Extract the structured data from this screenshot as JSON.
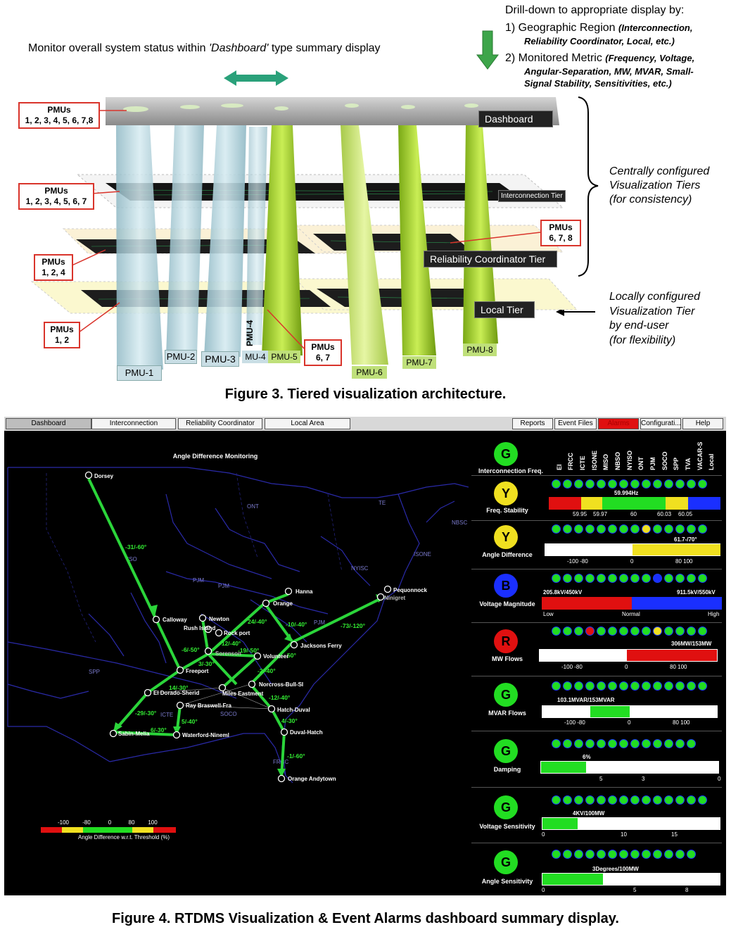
{
  "fig3": {
    "drill_title": "Drill-down to appropriate display by:",
    "drill_1_main": "1) Geographic Region",
    "drill_1_sub_a": "(Interconnection,",
    "drill_1_sub_b": "Reliability Coordinator, Local, etc.)",
    "drill_2_main": "2) Monitored Metric",
    "drill_2_sub_a": "(Frequency, Voltage,",
    "drill_2_sub_b": "Angular-Separation, MW, MVAR, Small-",
    "drill_2_sub_c": "Signal Stability, Sensitivities, etc.)",
    "monitor_text_a": "Monitor overall system status within ",
    "monitor_text_b": "'Dashboard'",
    "monitor_text_c": " type summary display",
    "pmu_boxes": [
      {
        "title": "PMUs",
        "list": "1, 2, 3, 4, 5, 6, 7,8"
      },
      {
        "title": "PMUs",
        "list": "1, 2, 3, 4, 5, 6, 7"
      },
      {
        "title": "PMUs",
        "list": "1, 2, 4"
      },
      {
        "title": "PMUs",
        "list": "1, 2"
      },
      {
        "title": "PMUs",
        "list": "6, 7, 8"
      },
      {
        "title": "PMUs",
        "list": "6, 7"
      }
    ],
    "tiers": {
      "dashboard": "Dashboard",
      "interconnection": "Interconnection Tier",
      "reliability": "Reliability Coordinator Tier",
      "local": "Local Tier"
    },
    "pmu_labels": [
      "PMU-1",
      "PMU-2",
      "PMU-3",
      "PMU-4",
      "MU-4",
      "PMU-5",
      "PMU-6",
      "PMU-7",
      "PMU-8"
    ],
    "central_a": "Centrally configured",
    "central_b": "Visualization Tiers",
    "central_c": "(for consistency)",
    "local_a": "Locally configured",
    "local_b": "Visualization Tier",
    "local_c": "by end-user",
    "local_d": "(for flexibility)",
    "caption": "Figure 3. Tiered visualization architecture."
  },
  "fig4": {
    "tabs": [
      "Dashboard",
      "Interconnection",
      "Reliability Coordinator",
      "Local Area",
      "Reports",
      "Event Files",
      "Alarms",
      "Configurati...",
      "Help"
    ],
    "map_title": "Angle Difference Monitoring",
    "legend_ticks": [
      "-100",
      "-80",
      "0",
      "80",
      "100"
    ],
    "legend_label": "Angle Difference w.r.t. Threshold (%)",
    "columns": [
      "EI",
      "FRCC",
      "ICTE",
      "ISONE",
      "MISO",
      "NBSO",
      "NYISO",
      "ONT",
      "PJM",
      "SOCO",
      "SPP",
      "TVA",
      "VACAR-S",
      "Local"
    ],
    "regions": [
      "ONT",
      "TE",
      "NBSC",
      "ISONE",
      "NYISC",
      "PJM",
      "PJM",
      "SPP",
      "SOCO",
      "ICTE",
      "FRCC",
      "ISO",
      "PJM"
    ],
    "nodes": [
      "Dorsey",
      "Hanna",
      "Orange",
      "Pequonnock",
      "Ninigret",
      "Calloway",
      "Newton",
      "Rush Island",
      "Rock port",
      "Jacksons Ferry",
      "Sorenson",
      "Volunteer",
      "Freeport",
      "Norcross-Bull-SI",
      "Miles Eastment",
      "El Dorado-Sherid",
      "Ray Braswell-Fra",
      "Hatch-Duval",
      "Waterford-Nineml",
      "Sabin-Melia",
      "Duval-Hatch",
      "Orange Andytown"
    ],
    "flows": [
      "-31/-60°",
      "24/-40°",
      "-10/-40°",
      "-73/-120°",
      "-12/-40°",
      "-6/-50°",
      "3/-30°",
      "-19/-50°",
      "50°",
      "-2/-40°",
      "14/-30°",
      "-29/-30°",
      "5/-40°",
      "-12/-40°",
      "4/-30°",
      "-1/-60°",
      "6/-30°"
    ],
    "metrics": [
      {
        "status": "G",
        "label": "Interconnection Freq."
      },
      {
        "status": "Y",
        "label": "Freq. Stability",
        "value": "59.994Hz",
        "ticks": [
          "59.95",
          "59.97",
          "60",
          "60.03",
          "60.05"
        ]
      },
      {
        "status": "Y",
        "label": "Angle Difference",
        "value": "61.7-/70°",
        "ticks": [
          "-100 -80",
          "0",
          "80 100"
        ]
      },
      {
        "status": "B",
        "label": "Voltage Magnitude",
        "value_left": "205.8kV/450kV",
        "value_right": "911.5kV/550kV",
        "ticks": [
          "Low",
          "Normal",
          "High"
        ]
      },
      {
        "status": "R",
        "label": "MW Flows",
        "value": "306MW/153MW",
        "ticks": [
          "-100 -80",
          "0",
          "80 100"
        ]
      },
      {
        "status": "G",
        "label": "MVAR Flows",
        "value": "103.1MVAR/153MVAR",
        "ticks": [
          "-100 -80",
          "0",
          "80 100"
        ]
      },
      {
        "status": "G",
        "label": "Damping",
        "value": "6%",
        "ticks": [
          "5",
          "3",
          "0"
        ]
      },
      {
        "status": "G",
        "label": "Voltage Sensitivity",
        "value": "4KV/100MW",
        "ticks": [
          "0",
          "10",
          "15"
        ]
      },
      {
        "status": "G",
        "label": "Angle Sensitivity",
        "value": "3Degrees/100MW",
        "ticks": [
          "0",
          "5",
          "8"
        ]
      }
    ],
    "caption": "Figure 4. RTDMS Visualization & Event Alarms dashboard summary display."
  },
  "colors": {
    "green": "#22dd22",
    "yellow": "#f0e020",
    "red": "#e01010",
    "blue": "#1a2fff",
    "arrow": "#2bd53a",
    "arrow_fig3": "#2aa17a"
  }
}
